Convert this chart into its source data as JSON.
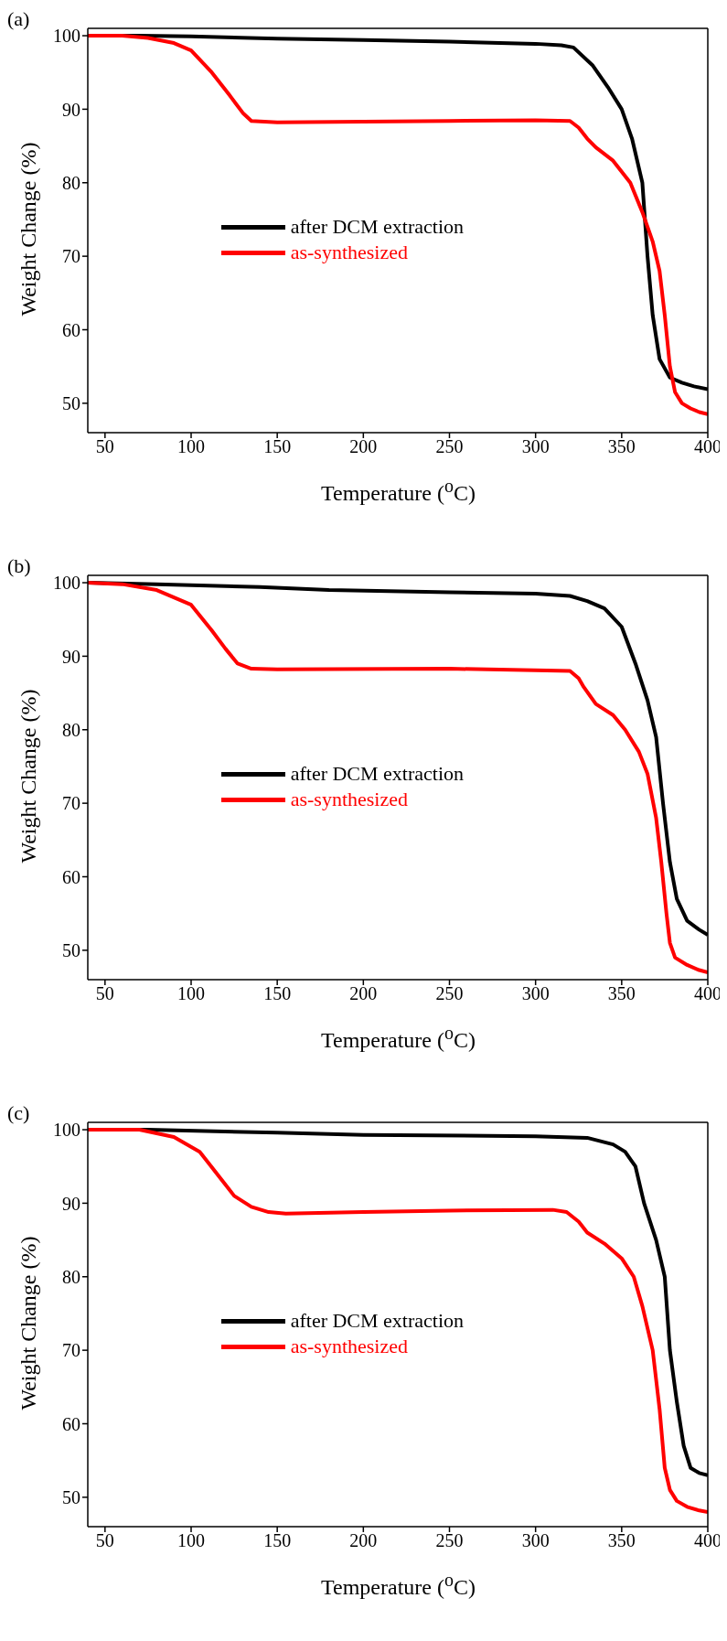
{
  "chart_data": [
    {
      "type": "line",
      "title": "(a)",
      "xlabel": "Temperature ($^{o}$C)",
      "ylabel": "Weight Change (%)",
      "xlim": [
        40,
        400
      ],
      "xticks": [
        50,
        100,
        150,
        200,
        250,
        300,
        350,
        400
      ],
      "ylim": [
        46,
        101
      ],
      "yticks": [
        50,
        60,
        70,
        80,
        90,
        100
      ],
      "legend": "center",
      "marker": "none",
      "line_style": "solid",
      "series": [
        {
          "name": "after DCM extraction",
          "color": "#000000",
          "x": [
            40,
            70,
            100,
            150,
            200,
            250,
            300,
            315,
            322,
            333,
            342,
            350,
            356,
            362,
            365,
            368,
            372,
            378,
            385,
            392,
            400
          ],
          "values": [
            100,
            100,
            99.9,
            99.6,
            99.4,
            99.2,
            98.9,
            98.7,
            98.4,
            96,
            93,
            90,
            86,
            80,
            70,
            62,
            56,
            53.5,
            52.8,
            52.3,
            51.9
          ]
        },
        {
          "name": "as-synthesized",
          "color": "#ff0000",
          "x": [
            40,
            60,
            75,
            90,
            100,
            112,
            122,
            130,
            135,
            150,
            200,
            250,
            300,
            320,
            325,
            330,
            335,
            345,
            355,
            362,
            368,
            372,
            375,
            378,
            381,
            385,
            390,
            395,
            400
          ],
          "values": [
            100,
            100,
            99.7,
            99,
            98,
            95,
            92,
            89.5,
            88.4,
            88.2,
            88.3,
            88.4,
            88.5,
            88.4,
            87.5,
            86,
            84.8,
            83,
            80,
            76,
            72,
            68,
            62,
            55,
            51.5,
            50,
            49.3,
            48.8,
            48.5
          ]
        }
      ]
    },
    {
      "type": "line",
      "title": "(b)",
      "xlabel": "Temperature ($^{o}$C)",
      "ylabel": "Weight Change (%)",
      "xlim": [
        40,
        400
      ],
      "xticks": [
        50,
        100,
        150,
        200,
        250,
        300,
        350,
        400
      ],
      "ylim": [
        46,
        101
      ],
      "yticks": [
        50,
        60,
        70,
        80,
        90,
        100
      ],
      "legend": "center",
      "marker": "none",
      "line_style": "solid",
      "series": [
        {
          "name": "after DCM extraction",
          "color": "#000000",
          "x": [
            40,
            80,
            140,
            180,
            250,
            300,
            320,
            330,
            340,
            350,
            358,
            365,
            370,
            374,
            378,
            382,
            388,
            395,
            400
          ],
          "values": [
            100,
            99.8,
            99.4,
            99,
            98.7,
            98.5,
            98.2,
            97.5,
            96.5,
            94,
            89,
            84,
            79,
            70,
            62,
            57,
            54,
            52.8,
            52.1
          ]
        },
        {
          "name": "as-synthesized",
          "color": "#ff0000",
          "x": [
            40,
            60,
            80,
            100,
            112,
            120,
            127,
            135,
            150,
            250,
            320,
            325,
            328,
            335,
            345,
            352,
            360,
            365,
            370,
            373,
            376,
            378,
            381,
            388,
            395,
            400
          ],
          "values": [
            100,
            99.8,
            99,
            97,
            93.5,
            91,
            89,
            88.3,
            88.2,
            88.3,
            88,
            87,
            85.8,
            83.5,
            82,
            80,
            77,
            74,
            68,
            62,
            55,
            51,
            49,
            48,
            47.3,
            47
          ]
        }
      ]
    },
    {
      "type": "line",
      "title": "(c)",
      "xlabel": "Temperature ($^{o}$C)",
      "ylabel": "Weight Change (%)",
      "xlim": [
        40,
        400
      ],
      "xticks": [
        50,
        100,
        150,
        200,
        250,
        300,
        350,
        400
      ],
      "ylim": [
        46,
        101
      ],
      "yticks": [
        50,
        60,
        70,
        80,
        90,
        100
      ],
      "legend": "center",
      "marker": "none",
      "line_style": "solid",
      "series": [
        {
          "name": "after DCM extraction",
          "color": "#000000",
          "x": [
            40,
            75,
            150,
            200,
            300,
            330,
            345,
            352,
            358,
            363,
            370,
            375,
            378,
            382,
            386,
            390,
            395,
            400
          ],
          "values": [
            100,
            100,
            99.6,
            99.3,
            99.1,
            98.9,
            98,
            97,
            95,
            90,
            85,
            80,
            70,
            63,
            57,
            54,
            53.3,
            53
          ]
        },
        {
          "name": "as-synthesized",
          "color": "#ff0000",
          "x": [
            40,
            70,
            90,
            105,
            115,
            125,
            135,
            145,
            155,
            200,
            250,
            310,
            318,
            325,
            330,
            340,
            350,
            357,
            362,
            368,
            372,
            375,
            378,
            382,
            388,
            395,
            400
          ],
          "values": [
            100,
            100,
            99,
            97,
            94,
            91,
            89.5,
            88.8,
            88.6,
            88.8,
            89,
            89.1,
            88.8,
            87.5,
            86,
            84.5,
            82.5,
            80,
            76,
            70,
            62,
            54,
            51,
            49.5,
            48.7,
            48.2,
            48
          ]
        }
      ]
    }
  ]
}
